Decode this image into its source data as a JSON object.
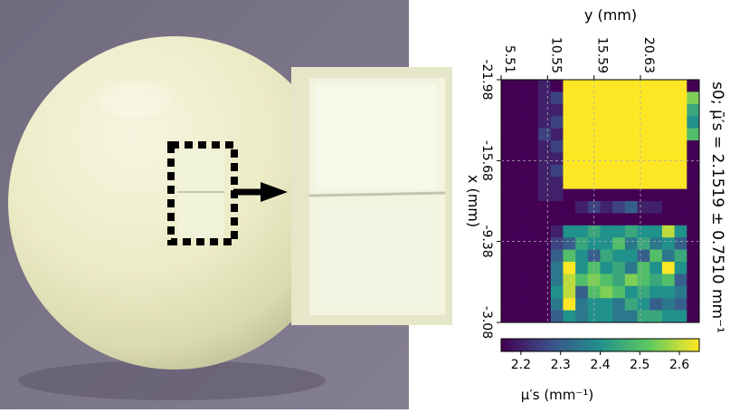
{
  "photo": {
    "background": "#7a7488",
    "sphere_color": "#ecebc6",
    "marker": "#000000"
  },
  "chart_data": {
    "type": "heatmap",
    "colormap": "viridis",
    "title": "s0; μ̄′s = 2.1519 ± 0.7510 mm⁻¹",
    "top_axis_label": "y (mm)",
    "left_axis_label": "x (mm)",
    "y_ticks": [
      "5.51",
      "10.55",
      "15.59",
      "20.63"
    ],
    "x_ticks": [
      "-21.98",
      "-15.68",
      "-9.38",
      "-3.08"
    ],
    "grid": true,
    "colorbar": {
      "label": "μ′s (mm⁻¹)",
      "ticks": [
        "2.2",
        "2.3",
        "2.4",
        "2.5",
        "2.6"
      ],
      "range": [
        2.15,
        2.65
      ]
    },
    "values": [
      [
        2.15,
        2.15,
        2.15,
        2.2,
        2.15,
        2.65,
        2.65,
        2.65,
        2.65,
        2.65,
        2.65,
        2.65,
        2.65,
        2.65,
        2.65,
        2.15
      ],
      [
        2.15,
        2.15,
        2.15,
        2.2,
        2.25,
        2.65,
        2.65,
        2.65,
        2.65,
        2.65,
        2.65,
        2.65,
        2.65,
        2.65,
        2.65,
        2.55
      ],
      [
        2.15,
        2.15,
        2.15,
        2.2,
        2.2,
        2.65,
        2.65,
        2.65,
        2.65,
        2.65,
        2.65,
        2.65,
        2.65,
        2.65,
        2.65,
        2.45
      ],
      [
        2.15,
        2.15,
        2.15,
        2.2,
        2.25,
        2.65,
        2.65,
        2.65,
        2.65,
        2.65,
        2.65,
        2.65,
        2.65,
        2.65,
        2.65,
        2.4
      ],
      [
        2.15,
        2.15,
        2.15,
        2.25,
        2.2,
        2.65,
        2.65,
        2.65,
        2.65,
        2.65,
        2.65,
        2.65,
        2.65,
        2.65,
        2.65,
        2.5
      ],
      [
        2.15,
        2.15,
        2.15,
        2.2,
        2.25,
        2.65,
        2.65,
        2.65,
        2.65,
        2.65,
        2.65,
        2.65,
        2.65,
        2.65,
        2.65,
        2.15
      ],
      [
        2.15,
        2.15,
        2.15,
        2.2,
        2.2,
        2.65,
        2.65,
        2.65,
        2.65,
        2.65,
        2.65,
        2.65,
        2.65,
        2.65,
        2.65,
        2.15
      ],
      [
        2.15,
        2.15,
        2.15,
        2.2,
        2.25,
        2.65,
        2.65,
        2.65,
        2.65,
        2.65,
        2.65,
        2.65,
        2.65,
        2.65,
        2.65,
        2.15
      ],
      [
        2.15,
        2.15,
        2.15,
        2.2,
        2.2,
        2.65,
        2.65,
        2.65,
        2.65,
        2.65,
        2.65,
        2.65,
        2.65,
        2.65,
        2.65,
        2.15
      ],
      [
        2.15,
        2.15,
        2.15,
        2.2,
        2.2,
        2.15,
        2.15,
        2.15,
        2.15,
        2.15,
        2.15,
        2.15,
        2.15,
        2.15,
        2.15,
        2.15
      ],
      [
        2.15,
        2.15,
        2.15,
        2.15,
        2.15,
        2.15,
        2.2,
        2.25,
        2.2,
        2.25,
        2.3,
        2.2,
        2.2,
        2.15,
        2.15,
        2.15
      ],
      [
        2.15,
        2.15,
        2.15,
        2.15,
        2.15,
        2.15,
        2.15,
        2.15,
        2.15,
        2.15,
        2.15,
        2.15,
        2.15,
        2.15,
        2.15,
        2.15
      ],
      [
        2.15,
        2.15,
        2.15,
        2.15,
        2.2,
        2.4,
        2.4,
        2.45,
        2.4,
        2.4,
        2.45,
        2.4,
        2.4,
        2.6,
        2.4,
        2.15
      ],
      [
        2.15,
        2.15,
        2.15,
        2.15,
        2.25,
        2.3,
        2.45,
        2.4,
        2.4,
        2.5,
        2.35,
        2.45,
        2.35,
        2.4,
        2.3,
        2.15
      ],
      [
        2.15,
        2.15,
        2.15,
        2.15,
        2.3,
        2.5,
        2.4,
        2.3,
        2.45,
        2.4,
        2.4,
        2.3,
        2.5,
        2.35,
        2.45,
        2.15
      ],
      [
        2.15,
        2.15,
        2.15,
        2.15,
        2.35,
        2.65,
        2.4,
        2.5,
        2.4,
        2.45,
        2.35,
        2.5,
        2.4,
        2.65,
        2.4,
        2.15
      ],
      [
        2.15,
        2.15,
        2.15,
        2.15,
        2.35,
        2.6,
        2.5,
        2.55,
        2.5,
        2.45,
        2.55,
        2.5,
        2.45,
        2.5,
        2.3,
        2.15
      ],
      [
        2.15,
        2.15,
        2.15,
        2.15,
        2.4,
        2.6,
        2.3,
        2.5,
        2.55,
        2.5,
        2.4,
        2.45,
        2.4,
        2.4,
        2.35,
        2.15
      ],
      [
        2.15,
        2.15,
        2.15,
        2.15,
        2.35,
        2.65,
        2.35,
        2.4,
        2.4,
        2.35,
        2.45,
        2.4,
        2.3,
        2.35,
        2.3,
        2.15
      ],
      [
        2.15,
        2.15,
        2.15,
        2.15,
        2.3,
        2.4,
        2.35,
        2.4,
        2.4,
        2.35,
        2.35,
        2.45,
        2.45,
        2.4,
        2.4,
        2.15
      ]
    ]
  }
}
